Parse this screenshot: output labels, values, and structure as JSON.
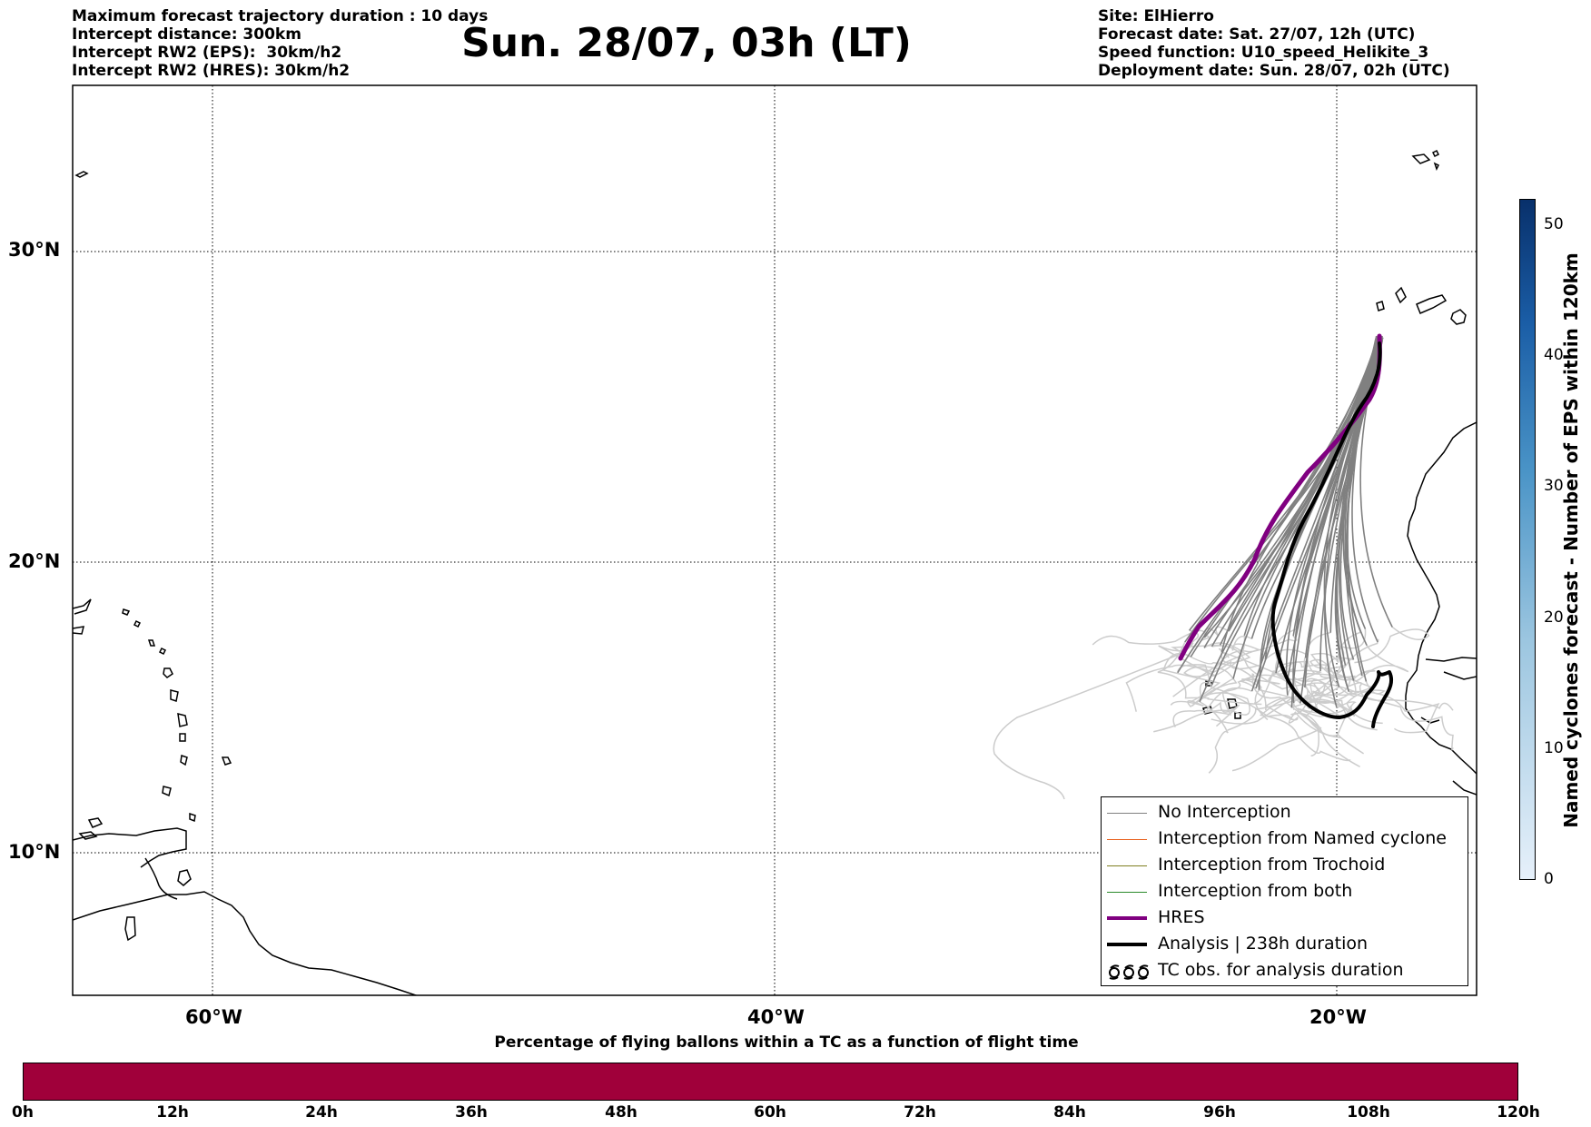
{
  "header_left": [
    "Maximum forecast trajectory duration : 10 days",
    "Intercept distance: 300km",
    "Intercept RW2 (EPS):  30km/h2",
    "Intercept RW2 (HRES): 30km/h2"
  ],
  "title": "Sun. 28/07, 03h (LT)",
  "header_right": [
    "Site: ElHierro",
    "Forecast date: Sat. 27/07, 12h (UTC)",
    "Speed function: U10_speed_Helikite_3",
    "Deployment date: Sun. 28/07, 02h (UTC)"
  ],
  "map": {
    "lon_range": [
      -65,
      15
    ],
    "lat_range": [
      5,
      35
    ],
    "lat_ticks": [
      {
        "value": 30,
        "label": "30°N"
      },
      {
        "value": 20,
        "label": "20°N"
      },
      {
        "value": 10,
        "label": "10°N"
      }
    ],
    "lon_ticks": [
      {
        "value": -60,
        "label": "60°W"
      },
      {
        "value": -40,
        "label": "40°W"
      },
      {
        "value": -20,
        "label": "20°W"
      }
    ],
    "colors": {
      "no_interception": "#808080",
      "no_interception_late": "#cccccc",
      "named_cyclone": "#e8601c",
      "trochoid": "#808020",
      "both": "#2a8a2a",
      "hres": "#800080",
      "analysis": "#000000"
    }
  },
  "legend": {
    "items": [
      {
        "label": "No Interception",
        "style": "thin-gray"
      },
      {
        "label": "Interception from Named cyclone",
        "style": "thin-orange"
      },
      {
        "label": "Interception from Trochoid",
        "style": "thin-olive"
      },
      {
        "label": "Interception from both",
        "style": "thin-green"
      },
      {
        "label": "HRES",
        "style": "thick-purple"
      },
      {
        "label": "Analysis | 238h duration",
        "style": "thick-black"
      },
      {
        "label": "TC obs. for analysis duration",
        "style": "cyclone-symbols"
      }
    ]
  },
  "colorbar_right": {
    "label": "Named cyclones forecast - Number of EPS within 120km",
    "range": [
      0,
      52
    ],
    "ticks": [
      "0",
      "10",
      "20",
      "30",
      "40",
      "50"
    ]
  },
  "colorbar_bottom": {
    "title": "Percentage of flying ballons within a TC as a function of flight time",
    "color": "#a0003a",
    "ticks": [
      "0h",
      "12h",
      "24h",
      "36h",
      "48h",
      "60h",
      "72h",
      "84h",
      "96h",
      "108h",
      "120h"
    ]
  }
}
